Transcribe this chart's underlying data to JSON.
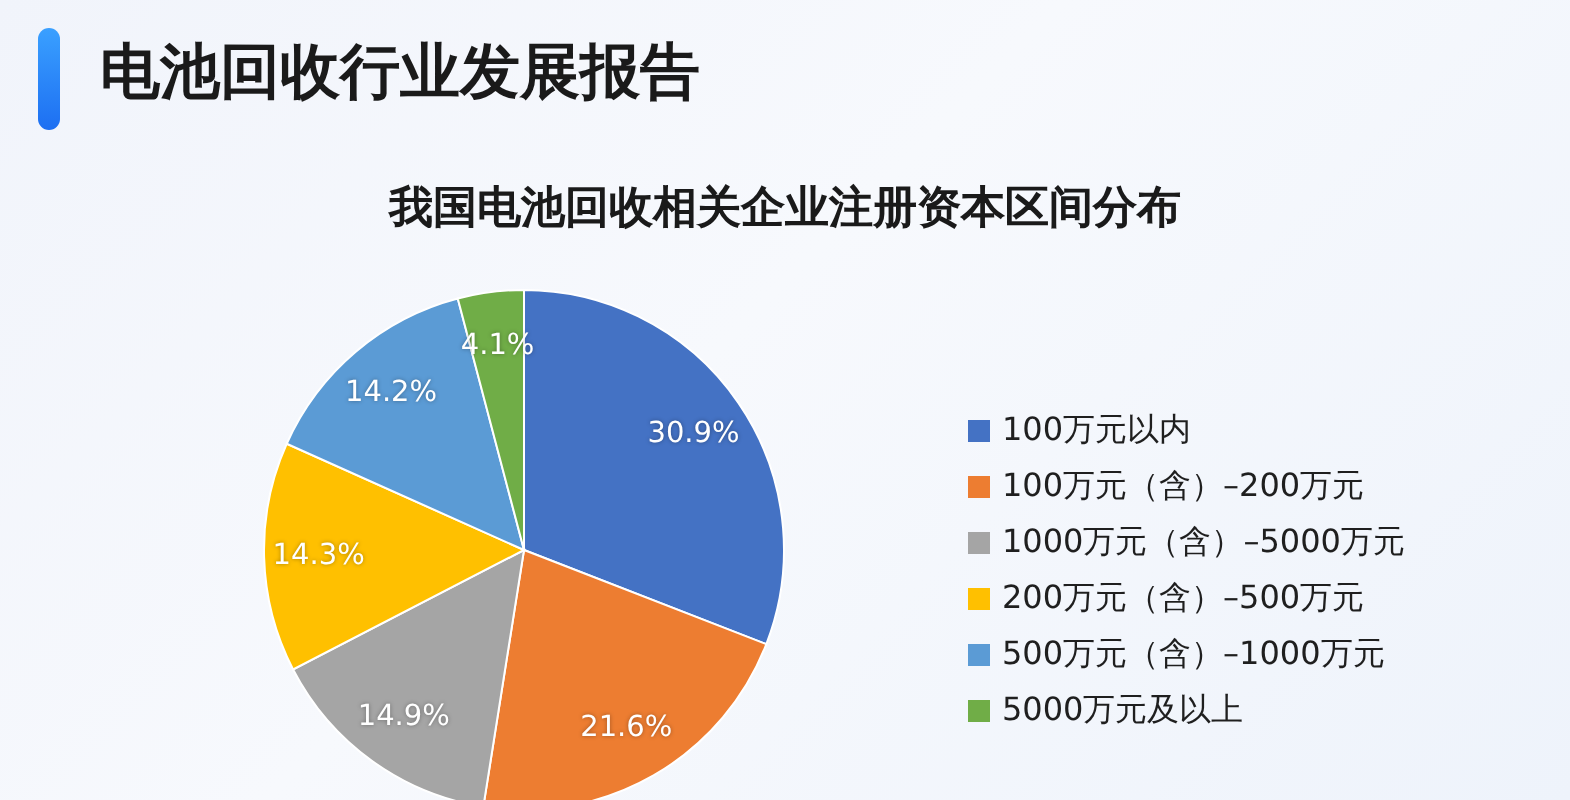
{
  "chart_data": {
    "type": "pie",
    "title": "电池回收行业发展报告",
    "subtitle": "我国电池回收相关企业注册资本区间分布",
    "categories": [
      "100万元以内",
      "100万元（含）–200万元",
      "1000万元（含）–5000万元",
      "200万元（含）–500万元",
      "500万元（含）–1000万元",
      "5000万元及以上"
    ],
    "values": [
      30.9,
      21.6,
      14.9,
      14.3,
      14.2,
      4.1
    ],
    "colors": [
      "#4472c4",
      "#ed7d31",
      "#a5a5a5",
      "#ffc000",
      "#5b9bd5",
      "#70ad47"
    ],
    "value_labels": [
      "30.9%",
      "21.6%",
      "14.9%",
      "14.3%",
      "14.2%",
      "4.1%"
    ],
    "legend": "right"
  }
}
